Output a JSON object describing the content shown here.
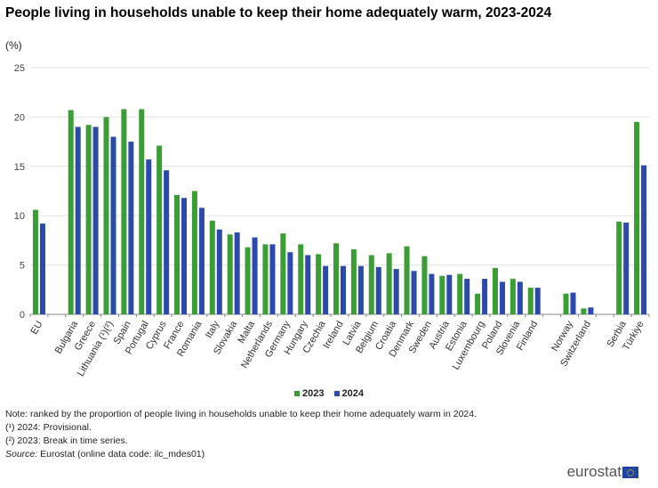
{
  "chart_data": {
    "type": "bar",
    "title": "People living in households unable to keep their home adequately warm, 2023-2024",
    "ylabel": "(%)",
    "ylim": [
      0,
      25
    ],
    "yticks": [
      0,
      5,
      10,
      15,
      20,
      25
    ],
    "grid": true,
    "legend_placement": "bottom",
    "categories": [
      "EU",
      "",
      "Bulgaria",
      "Greece",
      "Lithuania (¹)(²)",
      "Spain",
      "Portugal",
      "Cyprus",
      "France",
      "Romania",
      "Italy",
      "Slovakia",
      "Malta",
      "Netherlands",
      "Germany",
      "Hungary",
      "Czechia",
      "Ireland",
      "Latvia",
      "Belgium",
      "Croatia",
      "Denmark",
      "Sweden",
      "Austria",
      "Estonia",
      "Luxembourg",
      "Poland",
      "Slovenia",
      "Finland",
      "",
      "Norway",
      "Switzerland",
      "",
      "Serbia",
      "Türkiye"
    ],
    "series": [
      {
        "name": "2023",
        "color": "#3a9e35",
        "values": [
          10.6,
          null,
          20.7,
          19.2,
          20.0,
          20.8,
          20.8,
          17.1,
          12.1,
          12.5,
          9.5,
          8.1,
          6.8,
          7.1,
          8.2,
          7.1,
          6.1,
          7.2,
          6.6,
          6.0,
          6.2,
          6.9,
          5.9,
          3.9,
          4.1,
          2.1,
          4.7,
          3.6,
          2.7,
          null,
          2.1,
          0.6,
          null,
          9.4,
          19.5
        ]
      },
      {
        "name": "2024",
        "color": "#2b4aab",
        "values": [
          9.2,
          null,
          19.0,
          19.0,
          18.0,
          17.5,
          15.7,
          14.6,
          11.8,
          10.8,
          8.6,
          8.3,
          7.8,
          7.1,
          6.3,
          6.0,
          4.9,
          4.9,
          4.9,
          4.8,
          4.6,
          4.4,
          4.1,
          4.0,
          3.6,
          3.6,
          3.3,
          3.3,
          2.7,
          null,
          2.2,
          0.7,
          null,
          9.3,
          15.1
        ]
      }
    ]
  },
  "notes": [
    "Note: ranked by the proportion of people living in households unable to keep their home adequately warm in 2024.",
    "(¹) 2024: Provisional.",
    "(²) 2023: Break in time series."
  ],
  "source_label": "Source:",
  "source_text": " Eurostat (online data code: ilc_mdes01)",
  "logo_text": "eurostat"
}
